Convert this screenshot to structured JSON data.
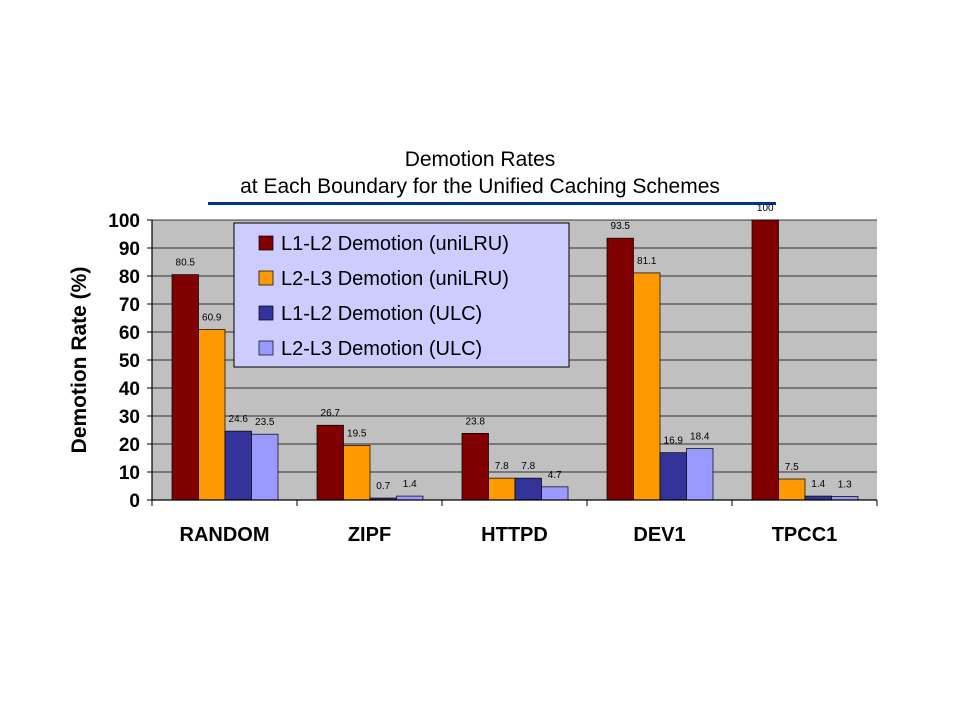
{
  "chart_data": {
    "type": "bar",
    "title_lines": [
      "Demotion Rates",
      "at Each Boundary for the Unified Caching Schemes"
    ],
    "xlabel": "",
    "ylabel": "Demotion Rate (%)",
    "ylim": [
      0,
      100
    ],
    "yticks": [
      0,
      10,
      20,
      30,
      40,
      50,
      60,
      70,
      80,
      90,
      100
    ],
    "categories": [
      "RANDOM",
      "ZIPF",
      "HTTPD",
      "DEV1",
      "TPCC1"
    ],
    "series": [
      {
        "name": "L1-L2 Demotion (uniLRU)",
        "color": "#800000",
        "values": [
          80.5,
          26.7,
          23.8,
          93.5,
          100
        ]
      },
      {
        "name": "L2-L3 Demotion (uniLRU)",
        "color": "#FF9900",
        "values": [
          60.9,
          19.5,
          7.8,
          81.1,
          7.5
        ]
      },
      {
        "name": "L1-L2 Demotion (ULC)",
        "color": "#333399",
        "values": [
          24.6,
          0.7,
          7.8,
          16.9,
          1.4
        ]
      },
      {
        "name": "L2-L3 Demotion (ULC)",
        "color": "#9999FF",
        "values": [
          23.5,
          1.4,
          4.7,
          18.4,
          1.3
        ]
      }
    ],
    "grid": true,
    "plot_background": "#C0C0C0",
    "legend_background": "#CCCCFF",
    "legend_position": "top-left",
    "title_underline_color": "#003399"
  }
}
